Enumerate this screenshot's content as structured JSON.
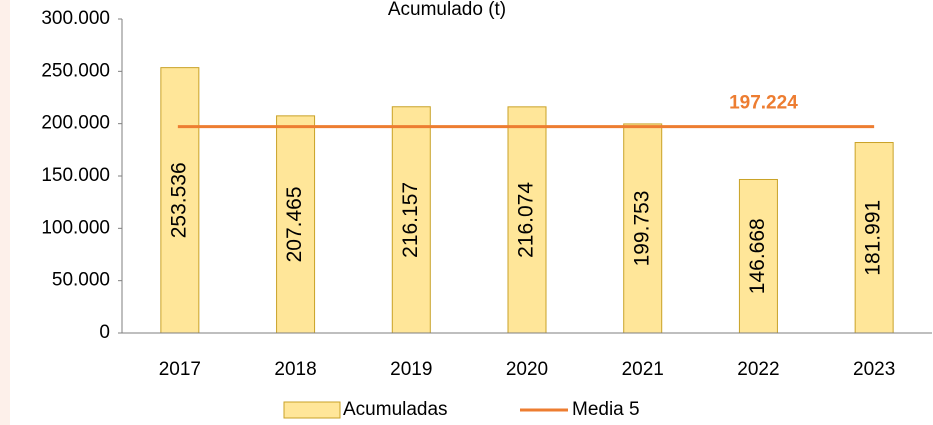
{
  "chart_data": {
    "type": "bar",
    "title": "Acumulado (t)",
    "categories": [
      "2017",
      "2018",
      "2019",
      "2020",
      "2021",
      "2022",
      "2023"
    ],
    "series": [
      {
        "name": "Acumuladas",
        "type": "bar",
        "color": "#ffe699",
        "values": [
          253536,
          207465,
          216157,
          216074,
          199753,
          146668,
          181991
        ],
        "value_labels": [
          "253.536",
          "207.465",
          "216.157",
          "216.074",
          "199.753",
          "146.668",
          "181.991"
        ]
      },
      {
        "name": "Media 5",
        "type": "line",
        "color": "#ed7d31",
        "values": [
          197224,
          197224,
          197224,
          197224,
          197224,
          197224,
          197224
        ],
        "value_labels": [
          null,
          null,
          null,
          null,
          null,
          "197.224",
          null
        ]
      }
    ],
    "ylim": [
      0,
      300000
    ],
    "yticks": [
      0,
      {
        "value": 50000,
        "label": "50.000"
      },
      {
        "value": 100000,
        "label": "100.000"
      },
      {
        "value": 150000,
        "label": "150.000"
      },
      {
        "value": 200000,
        "label": "200.000"
      },
      {
        "value": 250000,
        "label": "250.000"
      },
      {
        "value": 300000,
        "label": "300.000"
      }
    ],
    "legend": "bottom"
  }
}
